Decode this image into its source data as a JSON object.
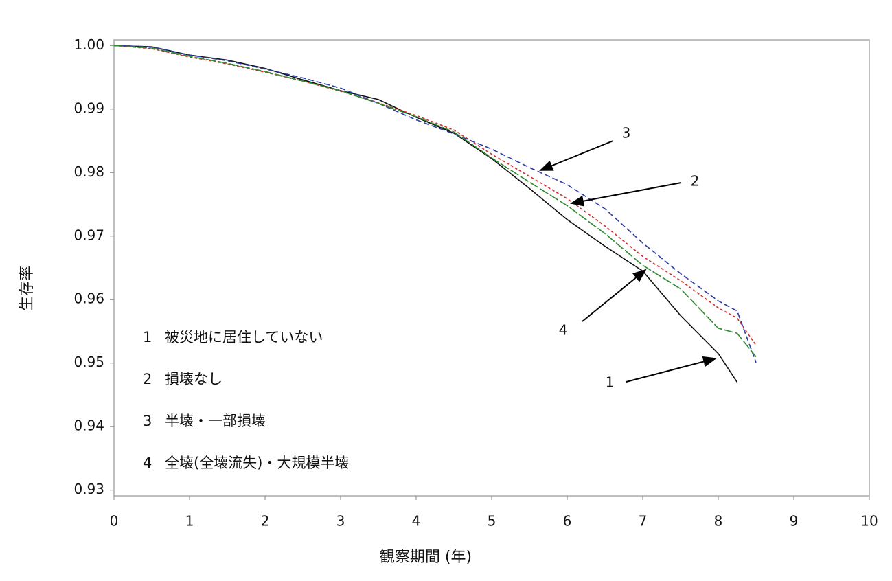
{
  "chart_data": {
    "type": "line",
    "xlabel": "観察期間 (年)",
    "ylabel": "生存率",
    "x": [
      0,
      0.5,
      1,
      1.5,
      2,
      2.5,
      3,
      3.5,
      4,
      4.5,
      5,
      5.5,
      6,
      6.5,
      7,
      7.5,
      8,
      8.25,
      8.5
    ],
    "series": [
      {
        "id": "1",
        "name": "被災地に居住していない",
        "color": "#111111",
        "dash": "none",
        "values": [
          1.0,
          0.9998,
          0.9985,
          0.9977,
          0.9964,
          0.9946,
          0.9929,
          0.9915,
          0.9887,
          0.9862,
          0.9822,
          0.9775,
          0.9726,
          0.9684,
          0.9645,
          0.9575,
          0.9515,
          0.947,
          null
        ]
      },
      {
        "id": "2",
        "name": "損壊なし",
        "color": "#d03030",
        "dash": "4 3",
        "values": [
          1.0,
          0.9995,
          0.9982,
          0.9971,
          0.9958,
          0.9944,
          0.9928,
          0.991,
          0.989,
          0.9867,
          0.9829,
          0.9794,
          0.9759,
          0.9716,
          0.9668,
          0.963,
          0.9587,
          0.9571,
          0.9528
        ]
      },
      {
        "id": "3",
        "name": "半壊・一部損壊",
        "color": "#2a3aa8",
        "dash": "8 4",
        "values": [
          1.0,
          0.9998,
          0.9985,
          0.9976,
          0.9963,
          0.9949,
          0.9933,
          0.9909,
          0.9883,
          0.9861,
          0.9837,
          0.9808,
          0.9781,
          0.9743,
          0.9689,
          0.9641,
          0.9598,
          0.9582,
          0.9501
        ]
      },
      {
        "id": "4",
        "name": "全壊(全壊流失)・大規模半壊",
        "color": "#2e8a2e",
        "dash": "14 3",
        "values": [
          1.0,
          0.9996,
          0.9983,
          0.9972,
          0.9959,
          0.9944,
          0.9929,
          0.9909,
          0.9888,
          0.9864,
          0.9823,
          0.9785,
          0.9748,
          0.9704,
          0.9654,
          0.9617,
          0.9555,
          0.9547,
          0.951
        ]
      }
    ],
    "xlim": [
      0,
      10
    ],
    "ylim": [
      0.9291,
      1.0009
    ],
    "xticks": [
      0,
      1,
      2,
      3,
      4,
      5,
      6,
      7,
      8,
      9,
      10
    ],
    "yticks": [
      {
        "value": 1,
        "label": "1.00"
      },
      0.99,
      0.98,
      0.97,
      0.96,
      0.95,
      0.94,
      0.93
    ],
    "grid": false
  }
}
